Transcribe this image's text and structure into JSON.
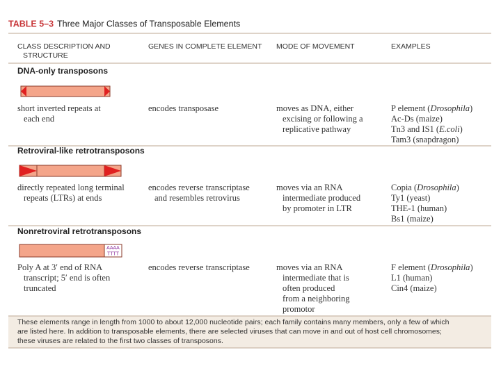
{
  "title": {
    "label": "TABLE 5–3",
    "text": "Three Major Classes of Transposable Elements"
  },
  "columns": [
    [
      "CLASS DESCRIPTION AND",
      "STRUCTURE"
    ],
    [
      "GENES IN COMPLETE ELEMENT"
    ],
    [
      "MODE OF MOVEMENT"
    ],
    [
      "EXAMPLES"
    ]
  ],
  "sections": [
    {
      "name": "DNA-only transposons",
      "structure": [
        "short inverted repeats at",
        "each end"
      ],
      "genes": [
        "encodes transposase"
      ],
      "movement": [
        "moves as DNA, either",
        "excising or following a",
        "replicative pathway"
      ],
      "examples": [
        [
          "P element (",
          "Drosophila",
          ")"
        ],
        "Ac-Ds (maize)",
        [
          "Tn3 and IS1 (",
          "E.coli",
          ")"
        ],
        "Tam3 (snapdragon)"
      ]
    },
    {
      "name": "Retroviral-like retrotransposons",
      "structure": [
        "directly repeated long terminal",
        "repeats (LTRs) at ends"
      ],
      "genes": [
        "encodes reverse transcriptase",
        "and resembles retrovirus"
      ],
      "movement": [
        "moves via an RNA",
        "intermediate produced",
        "by promoter in LTR"
      ],
      "examples": [
        [
          "Copia (",
          "Drosophila",
          ")"
        ],
        "Ty1 (yeast)",
        "THE-1 (human)",
        "Bs1 (maize)"
      ]
    },
    {
      "name": "Nonretroviral retrotransposons",
      "diagram_label": [
        "AAAA",
        "TTTT"
      ],
      "structure": [
        "Poly A at 3′ end of RNA",
        "transcript; 5′ end is often",
        "truncated"
      ],
      "genes": [
        "encodes reverse transcriptase"
      ],
      "movement": [
        "moves via an RNA",
        "intermediate that is",
        "often produced",
        "from a neighboring",
        "promotor"
      ],
      "examples": [
        [
          "F element (",
          "Drosophila",
          ")"
        ],
        "L1 (human)",
        "Cin4 (maize)"
      ]
    }
  ],
  "footnote": [
    "These elements range in length from 1000 to about 12,000 nucleotide pairs; each family contains many members, only a few of which",
    "are listed here. In addition to transposable elements, there are selected viruses that can move in and out of host cell chromosomes;",
    "these viruses are related to the first two classes of transposons."
  ]
}
